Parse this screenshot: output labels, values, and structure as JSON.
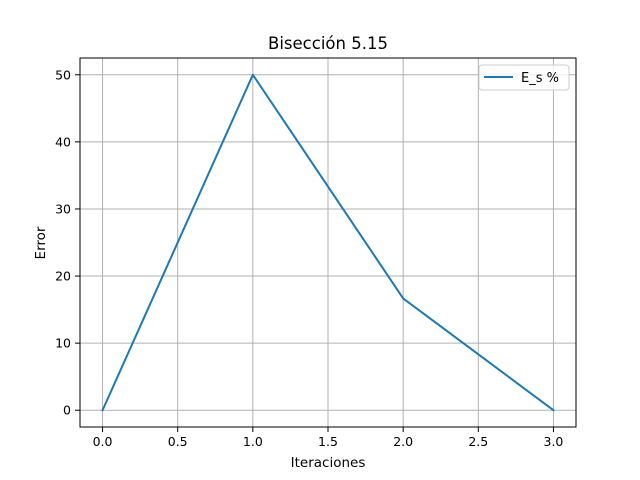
{
  "chart_data": {
    "type": "line",
    "title": "Bisección 5.15",
    "xlabel": "Iteraciones",
    "ylabel": "Error",
    "x": [
      0,
      1,
      2,
      3
    ],
    "series": [
      {
        "name": "E_s %",
        "values": [
          0,
          50,
          16.667,
          0
        ],
        "color": "#1f77b4"
      }
    ],
    "xlim": [
      -0.15,
      3.15
    ],
    "ylim": [
      -2.5,
      52.5
    ],
    "xticks": [
      0.0,
      0.5,
      1.0,
      1.5,
      2.0,
      2.5,
      3.0
    ],
    "xtick_labels": [
      "0.0",
      "0.5",
      "1.0",
      "1.5",
      "2.0",
      "2.5",
      "3.0"
    ],
    "yticks": [
      0,
      10,
      20,
      30,
      40,
      50
    ],
    "ytick_labels": [
      "0",
      "10",
      "20",
      "30",
      "40",
      "50"
    ],
    "grid": true,
    "legend": "top-right"
  }
}
